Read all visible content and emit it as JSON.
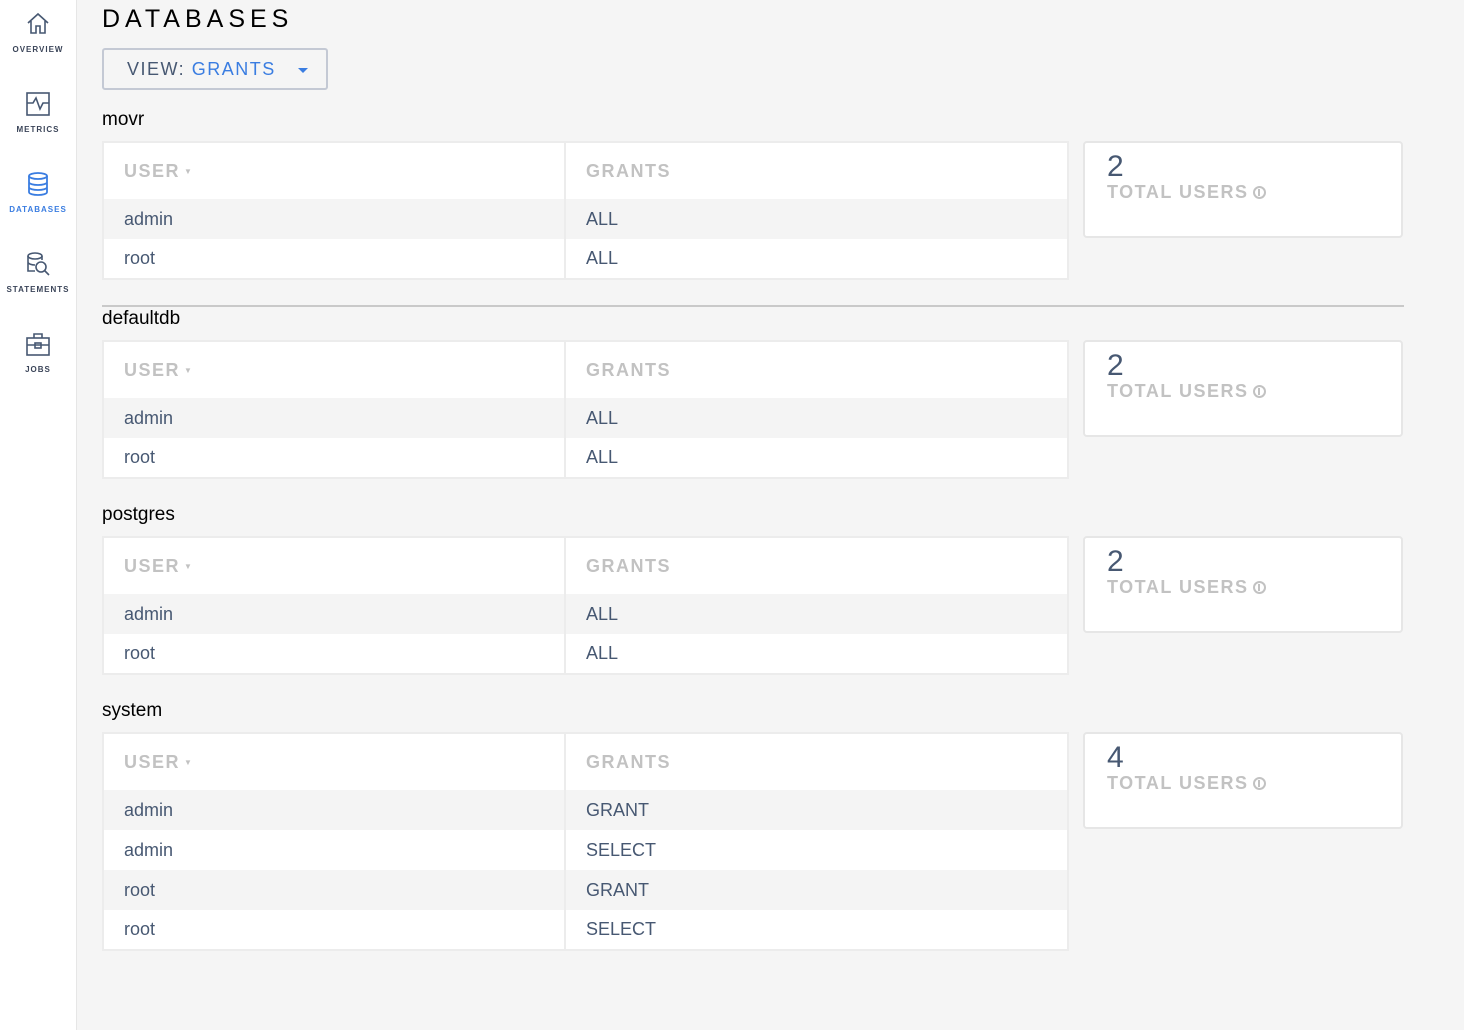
{
  "sidebar": {
    "items": [
      {
        "label": "OVERVIEW",
        "icon": "home-icon",
        "active": false
      },
      {
        "label": "METRICS",
        "icon": "metrics-icon",
        "active": false
      },
      {
        "label": "DATABASES",
        "icon": "database-icon",
        "active": true
      },
      {
        "label": "STATEMENTS",
        "icon": "statements-icon",
        "active": false
      },
      {
        "label": "JOBS",
        "icon": "jobs-icon",
        "active": false
      }
    ]
  },
  "header": {
    "title": "DATABASES",
    "view_label": "VIEW:",
    "view_value": "GRANTS"
  },
  "colors": {
    "accent": "#3a7de1",
    "text": "#475872",
    "muted": "#c2c2c2"
  },
  "columns": {
    "user": "USER",
    "grants": "GRANTS"
  },
  "card_label": "TOTAL USERS",
  "databases": [
    {
      "name": "movr",
      "total_users": "2",
      "rows": [
        [
          "admin",
          "ALL"
        ],
        [
          "root",
          "ALL"
        ]
      ]
    },
    {
      "name": "defaultdb",
      "total_users": "2",
      "rows": [
        [
          "admin",
          "ALL"
        ],
        [
          "root",
          "ALL"
        ]
      ]
    },
    {
      "name": "postgres",
      "total_users": "2",
      "rows": [
        [
          "admin",
          "ALL"
        ],
        [
          "root",
          "ALL"
        ]
      ]
    },
    {
      "name": "system",
      "total_users": "4",
      "rows": [
        [
          "admin",
          "GRANT"
        ],
        [
          "admin",
          "SELECT"
        ],
        [
          "root",
          "GRANT"
        ],
        [
          "root",
          "SELECT"
        ]
      ]
    }
  ]
}
